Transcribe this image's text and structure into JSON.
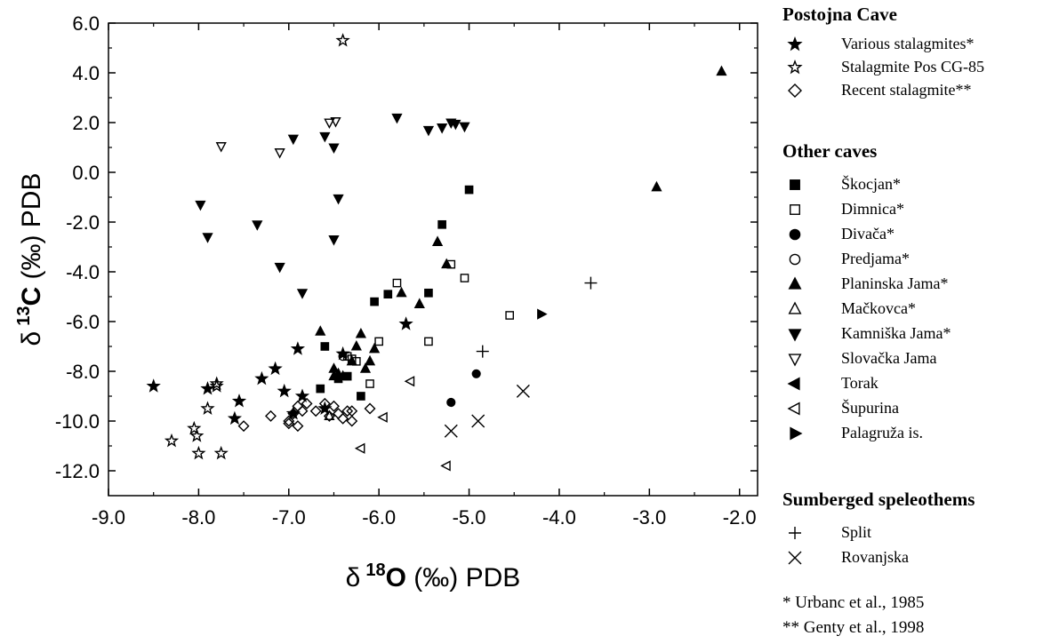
{
  "chart_data": {
    "type": "scatter",
    "xaxis": {
      "label_prefix": "δ",
      "label_sup": "18",
      "label_element": "O",
      "label_suffix": " (‰) PDB",
      "ticks": [
        "-9.0",
        "-8.0",
        "-7.0",
        "-6.0",
        "-5.0",
        "-4.0",
        "-3.0",
        "-2.0"
      ],
      "range": [
        -9.0,
        -1.8
      ]
    },
    "yaxis": {
      "label_prefix": "δ",
      "label_sup": "13",
      "label_element": "C",
      "label_suffix": " (‰) PDB",
      "ticks": [
        "-12.0",
        "-10.0",
        "-8.0",
        "-6.0",
        "-4.0",
        "-2.0",
        "0.0",
        "2.0",
        "4.0",
        "6.0"
      ],
      "range": [
        -13.0,
        6.0
      ]
    },
    "grid": false,
    "legend_position": "right",
    "series": [
      {
        "name": "Various stalagmites*",
        "marker": "star-filled",
        "points": [
          [
            -8.5,
            -8.6
          ],
          [
            -7.9,
            -8.7
          ],
          [
            -7.55,
            -9.2
          ],
          [
            -7.3,
            -8.3
          ],
          [
            -7.15,
            -7.9
          ],
          [
            -7.05,
            -8.8
          ],
          [
            -6.9,
            -7.1
          ],
          [
            -6.85,
            -9.0
          ],
          [
            -6.6,
            -9.5
          ],
          [
            -6.4,
            -7.3
          ],
          [
            -5.7,
            -6.1
          ],
          [
            -6.95,
            -9.7
          ],
          [
            -7.6,
            -9.9
          ]
        ]
      },
      {
        "name": "Stalagmite Pos CG-85",
        "marker": "star-open",
        "points": [
          [
            -8.3,
            -10.8
          ],
          [
            -8.05,
            -10.3
          ],
          [
            -8.0,
            -11.3
          ],
          [
            -8.02,
            -10.6
          ],
          [
            -7.9,
            -9.5
          ],
          [
            -7.8,
            -8.6
          ],
          [
            -7.75,
            -11.3
          ],
          [
            -7.8,
            -8.5
          ],
          [
            -6.4,
            5.3
          ]
        ]
      },
      {
        "name": "Recent stalagmite**",
        "marker": "diamond-open",
        "points": [
          [
            -7.5,
            -10.2
          ],
          [
            -7.2,
            -9.8
          ],
          [
            -7.0,
            -10.0
          ],
          [
            -6.95,
            -9.7
          ],
          [
            -6.9,
            -9.4
          ],
          [
            -6.9,
            -10.2
          ],
          [
            -6.85,
            -9.6
          ],
          [
            -6.8,
            -9.3
          ],
          [
            -6.7,
            -9.6
          ],
          [
            -6.6,
            -9.3
          ],
          [
            -6.55,
            -9.8
          ],
          [
            -6.5,
            -9.4
          ],
          [
            -6.45,
            -9.7
          ],
          [
            -6.4,
            -9.9
          ],
          [
            -6.35,
            -9.6
          ],
          [
            -6.3,
            -10.0
          ],
          [
            -6.3,
            -9.6
          ],
          [
            -6.1,
            -9.5
          ],
          [
            -7.0,
            -10.1
          ]
        ]
      },
      {
        "name": "Škocjan*",
        "marker": "square-filled",
        "points": [
          [
            -6.65,
            -8.7
          ],
          [
            -6.6,
            -7.0
          ],
          [
            -6.45,
            -8.3
          ],
          [
            -6.2,
            -9.0
          ],
          [
            -6.05,
            -5.2
          ],
          [
            -5.9,
            -4.9
          ],
          [
            -5.45,
            -4.85
          ],
          [
            -5.3,
            -2.1
          ],
          [
            -5.0,
            -0.7
          ],
          [
            -6.35,
            -8.2
          ]
        ]
      },
      {
        "name": "Dimnica*",
        "marker": "square-open",
        "points": [
          [
            -6.3,
            -7.5
          ],
          [
            -6.25,
            -7.6
          ],
          [
            -6.1,
            -8.5
          ],
          [
            -6.0,
            -6.8
          ],
          [
            -5.8,
            -4.45
          ],
          [
            -5.45,
            -6.8
          ],
          [
            -5.2,
            -3.7
          ],
          [
            -5.05,
            -4.25
          ],
          [
            -4.55,
            -5.75
          ],
          [
            -6.35,
            -7.4
          ]
        ]
      },
      {
        "name": "Divača*",
        "marker": "circle-filled",
        "points": [
          [
            -4.92,
            -8.1
          ],
          [
            -5.2,
            -9.25
          ]
        ]
      },
      {
        "name": "Predjama*",
        "marker": "circle-open",
        "points": [
          [
            -6.4,
            -7.4
          ]
        ]
      },
      {
        "name": "Planinska Jama*",
        "marker": "triangle-up-filled",
        "points": [
          [
            -6.65,
            -6.4
          ],
          [
            -6.5,
            -8.2
          ],
          [
            -6.5,
            -7.9
          ],
          [
            -6.45,
            -8.1
          ],
          [
            -6.4,
            -8.2
          ],
          [
            -6.3,
            -7.6
          ],
          [
            -6.25,
            -7.0
          ],
          [
            -6.2,
            -6.5
          ],
          [
            -6.15,
            -7.9
          ],
          [
            -6.1,
            -7.6
          ],
          [
            -6.05,
            -7.1
          ],
          [
            -5.75,
            -4.85
          ],
          [
            -5.55,
            -5.3
          ],
          [
            -5.35,
            -2.8
          ],
          [
            -5.25,
            -3.7
          ],
          [
            -2.92,
            -0.6
          ],
          [
            -2.2,
            4.05
          ]
        ]
      },
      {
        "name": "Mačkovca*",
        "marker": "triangle-up-open",
        "points": [
          [
            -6.55,
            -9.8
          ]
        ]
      },
      {
        "name": "Kamniška Jama*",
        "marker": "triangle-down-filled",
        "points": [
          [
            -7.98,
            -1.3
          ],
          [
            -7.9,
            -2.6
          ],
          [
            -7.35,
            -2.1
          ],
          [
            -7.1,
            -3.8
          ],
          [
            -6.95,
            1.35
          ],
          [
            -6.85,
            -4.85
          ],
          [
            -6.6,
            1.45
          ],
          [
            -6.5,
            1.0
          ],
          [
            -6.5,
            -2.7
          ],
          [
            -6.45,
            -1.05
          ],
          [
            -5.8,
            2.2
          ],
          [
            -5.45,
            1.7
          ],
          [
            -5.3,
            1.8
          ],
          [
            -5.2,
            2.0
          ],
          [
            -5.15,
            1.95
          ],
          [
            -5.05,
            1.85
          ]
        ]
      },
      {
        "name": "Slovačka Jama",
        "marker": "triangle-down-open",
        "points": [
          [
            -7.75,
            1.05
          ],
          [
            -7.1,
            0.8
          ],
          [
            -6.55,
            2.0
          ],
          [
            -6.48,
            2.05
          ]
        ]
      },
      {
        "name": "Torak",
        "marker": "triangle-left-filled",
        "points": []
      },
      {
        "name": "Šupurina",
        "marker": "triangle-left-open",
        "points": [
          [
            -6.2,
            -11.1
          ],
          [
            -5.95,
            -9.85
          ],
          [
            -5.65,
            -8.4
          ],
          [
            -5.25,
            -11.8
          ]
        ]
      },
      {
        "name": "Palagruža is.",
        "marker": "triangle-right-filled",
        "points": [
          [
            -4.2,
            -5.7
          ]
        ]
      },
      {
        "name": "Split",
        "marker": "plus",
        "points": [
          [
            -4.85,
            -7.2
          ],
          [
            -3.65,
            -4.45
          ]
        ]
      },
      {
        "name": "Rovanjska",
        "marker": "cross",
        "points": [
          [
            -5.2,
            -10.4
          ],
          [
            -4.9,
            -10.0
          ],
          [
            -4.4,
            -8.8
          ]
        ]
      }
    ]
  },
  "legend": {
    "groups": [
      {
        "title": "Postojna Cave",
        "items": [
          "Various stalagmites*",
          "Stalagmite Pos CG-85",
          "Recent stalagmite**"
        ]
      },
      {
        "title": "Other caves",
        "items": [
          "Škocjan*",
          "Dimnica*",
          "Divača*",
          "Predjama*",
          "Planinska Jama*",
          "Mačkovca*",
          "Kamniška Jama*",
          "Slovačka Jama",
          "Torak",
          "Šupurina",
          "Palagruža is."
        ]
      },
      {
        "title": "Sumberged speleothems",
        "items": [
          "Split",
          "Rovanjska"
        ]
      }
    ],
    "notes": [
      "*  Urbanc et al., 1985",
      "** Genty et al., 1998"
    ]
  }
}
